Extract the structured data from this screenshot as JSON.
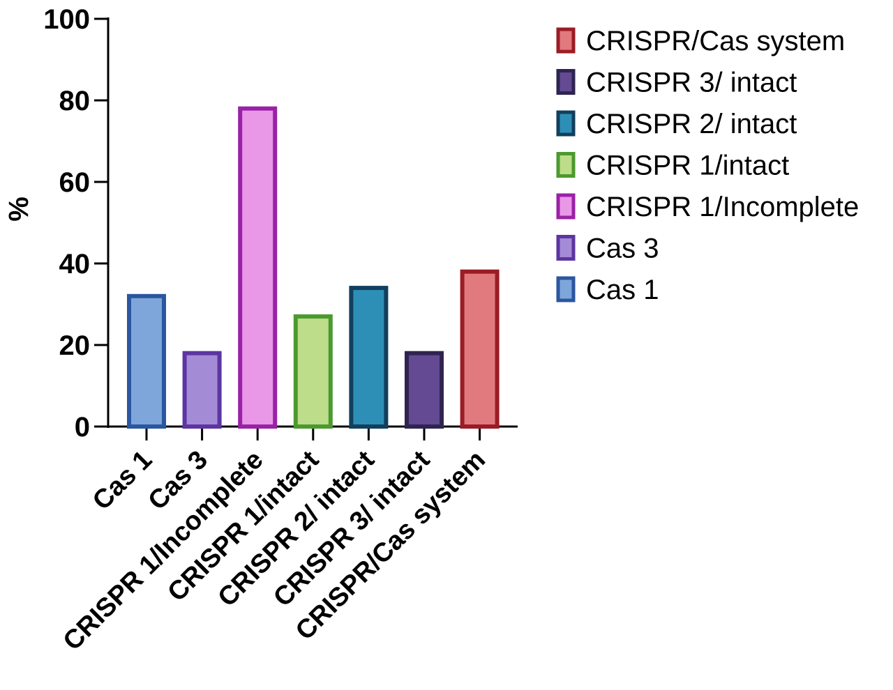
{
  "chart_data": {
    "type": "bar",
    "title": "",
    "xlabel": "",
    "ylabel": "%",
    "ylim": [
      0,
      100
    ],
    "yticks": [
      "0",
      "20",
      "40",
      "60",
      "80",
      "100"
    ],
    "grid": false,
    "legend_position": "right",
    "categories": [
      "Cas 1",
      "Cas 3",
      "CRISPR 1/Incomplete",
      "CRISPR 1/intact",
      "CRISPR 2/ intact",
      "CRISPR 3/ intact",
      "CRISPR/Cas system"
    ],
    "values": [
      32,
      18,
      78,
      27,
      34,
      18,
      38
    ],
    "colors": {
      "fill": [
        "#7ea6da",
        "#a38bd6",
        "#e998e8",
        "#bddd8a",
        "#2d8fb6",
        "#634a92",
        "#e07a7e"
      ],
      "edge": [
        "#2b56a0",
        "#5d35a2",
        "#9a22a6",
        "#4b9a2f",
        "#123f5d",
        "#2f2450",
        "#9b1c24"
      ]
    },
    "legend": [
      {
        "label": "CRISPR/Cas system",
        "category_index": 6
      },
      {
        "label": "CRISPR 3/ intact",
        "category_index": 5
      },
      {
        "label": "CRISPR 2/ intact",
        "category_index": 4
      },
      {
        "label": "CRISPR 1/intact",
        "category_index": 3
      },
      {
        "label": "CRISPR 1/Incomplete",
        "category_index": 2
      },
      {
        "label": "Cas 3",
        "category_index": 1
      },
      {
        "label": "Cas 1",
        "category_index": 0
      }
    ]
  }
}
